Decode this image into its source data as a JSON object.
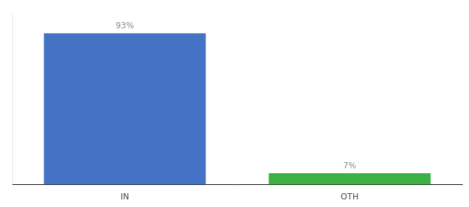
{
  "chart_data": {
    "type": "bar",
    "categories": [
      "IN",
      "OTH"
    ],
    "values": [
      93,
      7
    ],
    "value_labels": [
      "93%",
      "7%"
    ],
    "data_labels": true,
    "colors": [
      "#4472c4",
      "#3cb044"
    ],
    "ylim": [
      0,
      105
    ],
    "grid": false,
    "tick_labels": "x"
  }
}
